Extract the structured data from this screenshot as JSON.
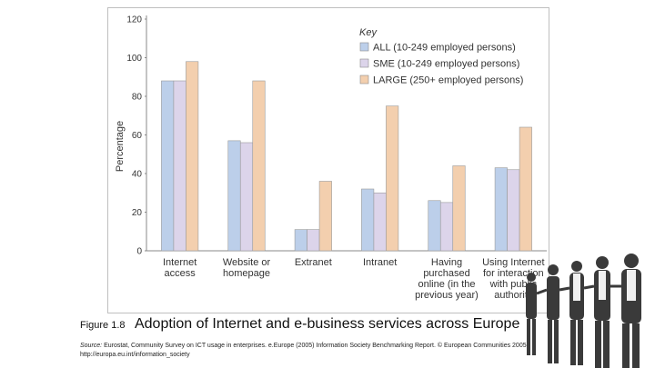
{
  "figure": {
    "number": "Figure 1.8",
    "title": "Adoption of Internet and e-business services across Europe",
    "source_label": "Source:",
    "source_text": "Eurostat, Community Survey on ICT usage in enterprises. e.Europe (2005) Information Society Benchmarking Report. © European Communities 2005.",
    "source_url": "http://europa.eu.int/information_society"
  },
  "chart_data": {
    "type": "bar",
    "ylabel": "Percentage",
    "ylim": [
      0,
      120
    ],
    "yticks": [
      0,
      20,
      40,
      60,
      80,
      100,
      120
    ],
    "legend_title": "Key",
    "legend_position": "top-right",
    "categories": [
      [
        "Internet",
        "access"
      ],
      [
        "Website or",
        "homepage"
      ],
      [
        "Extranet"
      ],
      [
        "Intranet"
      ],
      [
        "Having",
        "purchased",
        "online (in the",
        "previous year)"
      ],
      [
        "Using Internet",
        "for interaction",
        "with public",
        "authority"
      ]
    ],
    "series": [
      {
        "name": "ALL (10-249 employed persons)",
        "color": "#bccfea",
        "values": [
          88,
          57,
          11,
          32,
          26,
          43
        ]
      },
      {
        "name": "SME (10-249 employed persons)",
        "color": "#dcd4ea",
        "values": [
          88,
          56,
          11,
          30,
          25,
          42
        ]
      },
      {
        "name": "LARGE (250+ employed persons)",
        "color": "#f3cfae",
        "values": [
          98,
          88,
          36,
          75,
          44,
          64
        ]
      }
    ]
  }
}
